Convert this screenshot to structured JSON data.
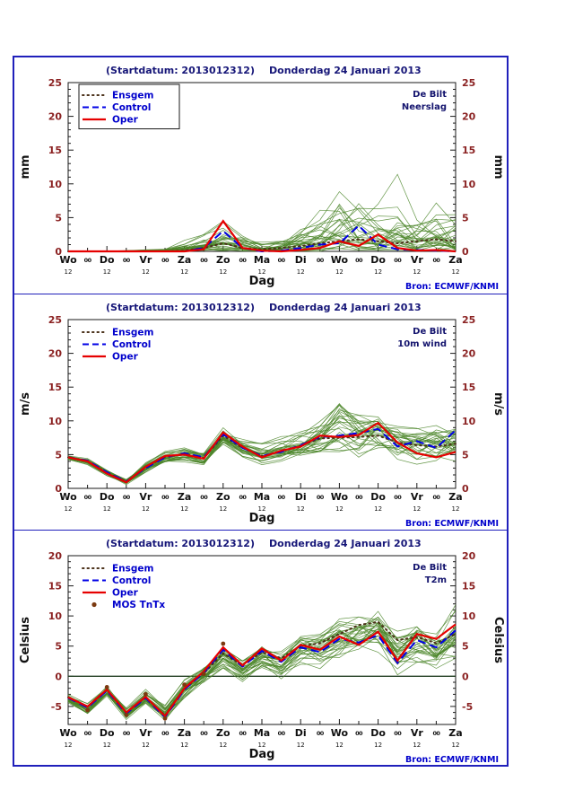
{
  "labels": {
    "dag": "Dag",
    "bron": "Bron: ECMWF/KNMI",
    "hour_major": "12",
    "hour_minor": "00"
  },
  "colors": {
    "figure_border": "#2020bb",
    "title": "#161678",
    "axis_num": "#8b2222",
    "day": "#101010",
    "blue_text": "#0000cc",
    "location": "#14146e",
    "member": "#4a8528",
    "ensgem": "#4a3018",
    "control": "#0000e6",
    "oper": "#e60000",
    "mos": "#7b3a10",
    "zero": "#233f23",
    "frame": "#1a1a1a"
  },
  "chart_data": [
    {
      "type": "line",
      "title_left": "(Startdatum: 2013012312)",
      "title_right": "Donderdag 24 Januari  2013",
      "location": [
        "De Bilt",
        "Neerslag"
      ],
      "ylabel": "mm",
      "ylim": [
        0,
        25
      ],
      "yticks": [
        0,
        5,
        10,
        15,
        20,
        25
      ],
      "xlabel": "Dag",
      "source": "Bron: ECMWF/KNMI",
      "x_days": [
        "Wo",
        "Do",
        "Vr",
        "Za",
        "Zo",
        "Ma",
        "Di",
        "Wo",
        "Do",
        "Vr",
        "Za"
      ],
      "x_step_days": 0.5,
      "legend_box": true,
      "legend": [
        {
          "label": "Ensgem",
          "style": "dotted",
          "series": "ensgem"
        },
        {
          "label": "Control",
          "style": "dashed",
          "series": "control"
        },
        {
          "label": "Oper",
          "style": "solid",
          "series": "oper"
        }
      ],
      "series": {
        "oper": [
          0,
          0,
          0,
          0,
          0,
          0,
          0,
          0.3,
          4.5,
          0.5,
          0.1,
          0,
          0.2,
          0.5,
          1.5,
          0.8,
          2.5,
          0.5,
          0.1,
          0.2,
          0
        ],
        "control": [
          0,
          0,
          0,
          0,
          0,
          0,
          0,
          0.5,
          3.0,
          0.5,
          0,
          0.1,
          0.5,
          1.0,
          1.2,
          3.8,
          1.0,
          0.3,
          0.2,
          0.1,
          0
        ],
        "ensgem": [
          0,
          0,
          0,
          0,
          0,
          0,
          0.1,
          0.5,
          1.2,
          0.5,
          0.3,
          0.5,
          0.8,
          1.2,
          1.5,
          1.8,
          1.5,
          1.2,
          1.5,
          1.8,
          1.5
        ]
      },
      "ensemble": {
        "count": 28,
        "seed": 11,
        "mode": "precip",
        "min": [
          0,
          0,
          0,
          0,
          0,
          0,
          0,
          0,
          0,
          0,
          0,
          0,
          0,
          0,
          0,
          0,
          0,
          0,
          0,
          0,
          0
        ],
        "max": [
          0.1,
          0.1,
          0.1,
          0.2,
          0.3,
          0.5,
          2,
          4,
          6.5,
          4,
          2,
          3,
          6,
          9,
          16,
          12,
          9,
          12,
          8,
          11,
          7
        ]
      },
      "zero_line": false
    },
    {
      "type": "line",
      "title_left": "(Startdatum: 2013012312)",
      "title_right": "Donderdag 24 Januari  2013",
      "location": [
        "De Bilt",
        "10m wind"
      ],
      "ylabel": "m/s",
      "ylim": [
        0,
        25
      ],
      "yticks": [
        0,
        5,
        10,
        15,
        20,
        25
      ],
      "xlabel": "Dag",
      "source": "Bron: ECMWF/KNMI",
      "x_days": [
        "Wo",
        "Do",
        "Vr",
        "Za",
        "Zo",
        "Ma",
        "Di",
        "Wo",
        "Do",
        "Vr",
        "Za"
      ],
      "x_step_days": 0.5,
      "legend_box": false,
      "legend": [
        {
          "label": "Ensgem",
          "style": "dotted",
          "series": "ensgem"
        },
        {
          "label": "Control",
          "style": "dashed",
          "series": "control"
        },
        {
          "label": "Oper",
          "style": "solid",
          "series": "oper"
        }
      ],
      "series": {
        "oper": [
          4.6,
          4.0,
          2.2,
          0.9,
          3.2,
          4.8,
          5.0,
          4.4,
          8.3,
          6.2,
          4.6,
          5.6,
          6.2,
          7.8,
          7.6,
          7.9,
          9.7,
          6.8,
          5.2,
          4.6,
          5.4
        ],
        "control": [
          4.6,
          4.1,
          2.4,
          1.0,
          3.0,
          4.6,
          5.2,
          4.6,
          8.0,
          6.0,
          4.8,
          5.4,
          6.4,
          7.6,
          7.8,
          8.2,
          8.8,
          6.2,
          7.0,
          6.0,
          8.6
        ],
        "ensgem": [
          4.6,
          4.0,
          2.3,
          1.0,
          3.1,
          4.7,
          5.1,
          4.5,
          7.8,
          6.0,
          4.8,
          5.5,
          6.3,
          7.4,
          7.5,
          7.6,
          7.8,
          6.8,
          6.4,
          6.2,
          6.6
        ]
      },
      "ensemble": {
        "count": 30,
        "seed": 23,
        "mode": "band",
        "min": [
          4.2,
          3.4,
          1.6,
          0.4,
          2.2,
          3.6,
          3.8,
          3.2,
          6.0,
          4.0,
          3.0,
          3.4,
          3.6,
          4.0,
          3.8,
          3.5,
          4.5,
          3.0,
          2.5,
          2.0,
          2.5
        ],
        "max": [
          5.0,
          4.6,
          3.0,
          1.6,
          4.2,
          5.8,
          6.4,
          6.0,
          9.5,
          8.0,
          7.0,
          8.0,
          9.5,
          11.5,
          15.5,
          13.0,
          12.5,
          11.0,
          10.5,
          11.0,
          10.0
        ]
      },
      "zero_line": false
    },
    {
      "type": "line",
      "title_left": "(Startdatum: 2013012312)",
      "title_right": "Donderdag 24 Januari  2013",
      "location": [
        "De Bilt",
        "T2m"
      ],
      "ylabel": "Celsius",
      "ylim": [
        -8,
        20
      ],
      "yticks": [
        -5,
        0,
        5,
        10,
        15,
        20
      ],
      "xlabel": "Dag",
      "source": "Bron: ECMWF/KNMI",
      "x_days": [
        "Wo",
        "Do",
        "Vr",
        "Za",
        "Zo",
        "Ma",
        "Di",
        "Wo",
        "Do",
        "Vr",
        "Za"
      ],
      "x_step_days": 0.5,
      "legend_box": false,
      "legend": [
        {
          "label": "Ensgem",
          "style": "dotted",
          "series": "ensgem"
        },
        {
          "label": "Control",
          "style": "dashed",
          "series": "control"
        },
        {
          "label": "Oper",
          "style": "solid",
          "series": "oper"
        },
        {
          "label": "MOS TnTx",
          "style": "dot",
          "series": "mos"
        }
      ],
      "series": {
        "oper": [
          -3.5,
          -5.0,
          -2.2,
          -6.0,
          -3.4,
          -6.6,
          -2.0,
          0.8,
          4.8,
          1.8,
          4.6,
          2.6,
          5.2,
          4.4,
          6.6,
          5.2,
          7.4,
          2.6,
          7.0,
          6.2,
          8.6
        ],
        "control": [
          -3.6,
          -5.2,
          -2.4,
          -6.2,
          -3.6,
          -6.8,
          -2.2,
          0.6,
          4.4,
          1.6,
          4.2,
          2.4,
          4.8,
          4.0,
          6.2,
          5.6,
          6.8,
          2.2,
          6.0,
          4.8,
          7.6
        ],
        "ensgem": [
          -3.5,
          -5.0,
          -2.3,
          -6.0,
          -3.5,
          -6.5,
          -2.0,
          0.5,
          3.8,
          1.8,
          4.0,
          3.0,
          5.0,
          5.5,
          7.0,
          8.5,
          9.0,
          6.0,
          6.5,
          5.5,
          7.0
        ]
      },
      "mos_tntx": {
        "points": [
          [
            0.5,
            -5.6
          ],
          [
            1.0,
            -1.8
          ],
          [
            1.5,
            -6.4
          ],
          [
            2.0,
            -3.0
          ],
          [
            2.5,
            -7.0
          ],
          [
            3.0,
            -1.4
          ],
          [
            3.5,
            0.4
          ],
          [
            4.0,
            5.4
          ]
        ]
      },
      "ensemble": {
        "count": 30,
        "seed": 37,
        "mode": "band",
        "min": [
          -4.5,
          -6.5,
          -3.5,
          -7.5,
          -5.0,
          -7.8,
          -4.5,
          -2.0,
          0.5,
          -1.5,
          0.5,
          -1.0,
          1.0,
          0.0,
          1.5,
          1.0,
          2.0,
          -1.5,
          0.5,
          0.0,
          2.0
        ],
        "max": [
          -2.8,
          -4.0,
          -1.2,
          -4.8,
          -2.0,
          -4.5,
          0.0,
          2.5,
          6.0,
          3.5,
          6.0,
          5.0,
          8.0,
          8.5,
          10.5,
          11.5,
          12.5,
          9.5,
          11.0,
          9.0,
          12.5
        ]
      },
      "zero_line": true
    }
  ]
}
